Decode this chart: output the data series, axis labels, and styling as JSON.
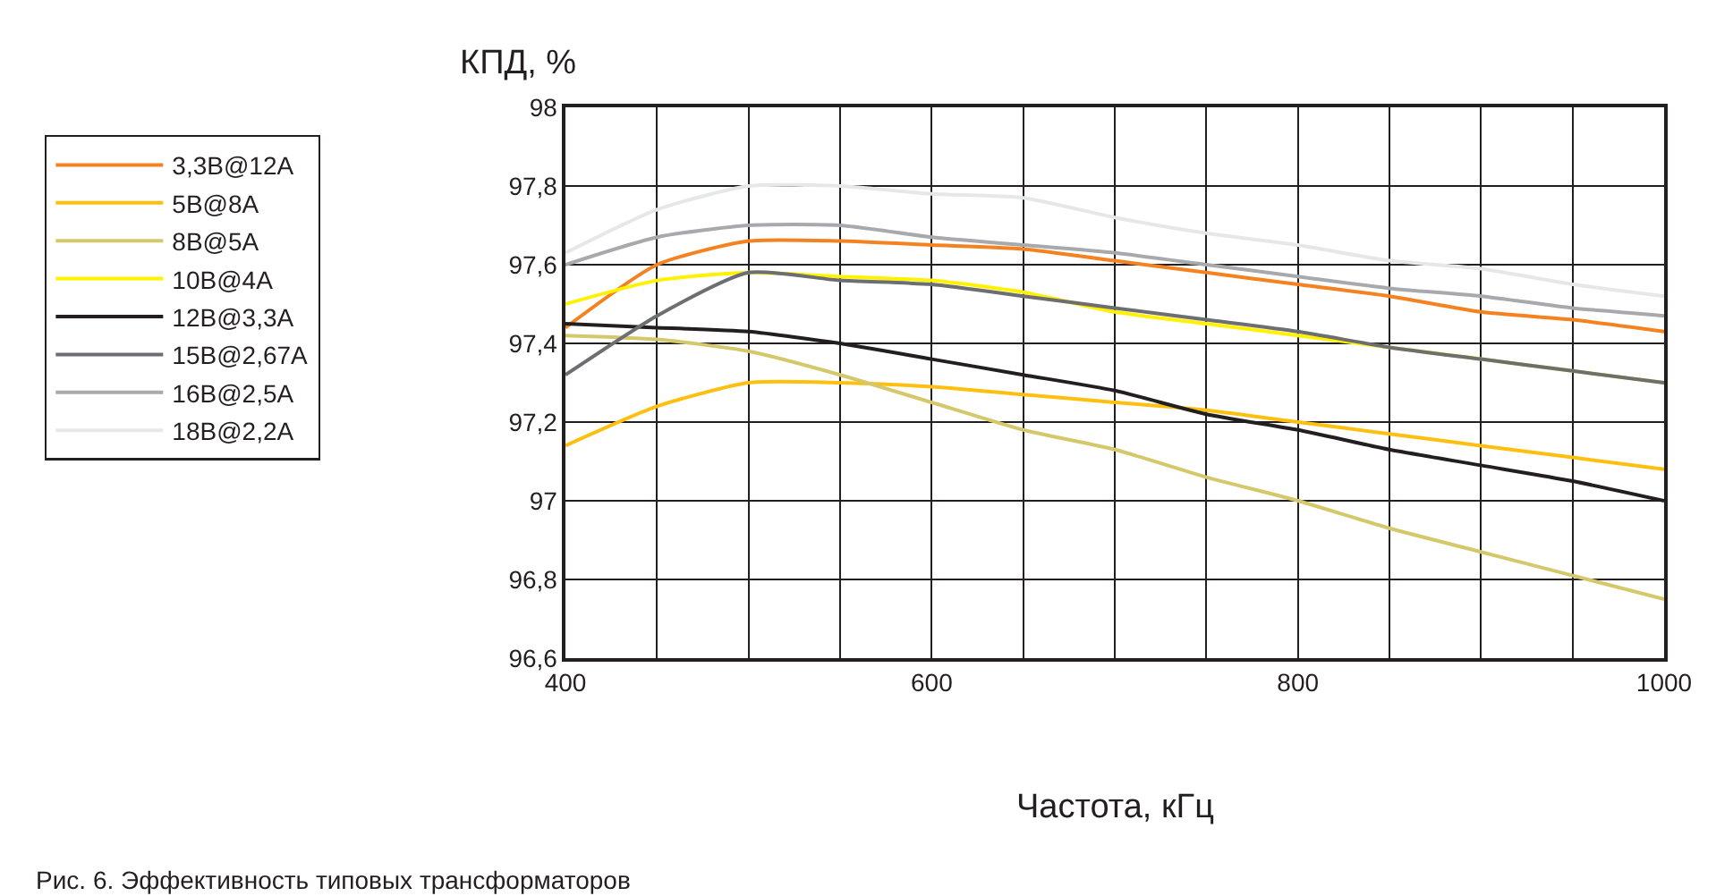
{
  "chart_data": {
    "type": "line",
    "xlabel": "Частота, кГц",
    "ylabel": "КПД, %",
    "annotations": [
      "Рис. 6. Эффективность типовых трансформаторов"
    ],
    "x": [
      400,
      450,
      500,
      550,
      600,
      650,
      700,
      750,
      800,
      850,
      900,
      950,
      1000
    ],
    "xlim": [
      400,
      1000
    ],
    "xticks": [
      400,
      {
        "value": 450,
        "label": null
      },
      {
        "value": 500,
        "label": null
      },
      {
        "value": 550,
        "label": null
      },
      600,
      {
        "value": 650,
        "label": null
      },
      {
        "value": 700,
        "label": null
      },
      {
        "value": 750,
        "label": null
      },
      800,
      {
        "value": 850,
        "label": null
      },
      {
        "value": 900,
        "label": null
      },
      {
        "value": 950,
        "label": null
      },
      1000
    ],
    "ylim": [
      96.6,
      98
    ],
    "yticks": [
      {
        "value": 96.6,
        "label": "96,6"
      },
      {
        "value": 96.8,
        "label": "96,8"
      },
      97,
      {
        "value": 97.2,
        "label": "97,2"
      },
      {
        "value": 97.4,
        "label": "97,4"
      },
      {
        "value": 97.6,
        "label": "97,6"
      },
      {
        "value": 97.8,
        "label": "97,8"
      },
      98
    ],
    "grid": true,
    "legend": "left",
    "line_style": "solid",
    "marker": "none",
    "series": [
      {
        "name": "3,3B@12A",
        "color": "#f58220",
        "values": [
          97.44,
          97.6,
          97.66,
          97.66,
          97.65,
          97.64,
          97.61,
          97.58,
          97.55,
          97.52,
          97.48,
          97.46,
          97.43
        ]
      },
      {
        "name": "5B@8A",
        "color": "#fdc010",
        "values": [
          97.14,
          97.24,
          97.3,
          97.3,
          97.29,
          97.27,
          97.25,
          97.23,
          97.2,
          97.17,
          97.14,
          97.11,
          97.08
        ]
      },
      {
        "name": "8B@5A",
        "color": "#d4c86a",
        "values": [
          97.42,
          97.41,
          97.38,
          97.32,
          97.25,
          97.18,
          97.13,
          97.06,
          97.0,
          96.93,
          96.87,
          96.81,
          96.75
        ]
      },
      {
        "name": "10B@4A",
        "color": "#fff200",
        "values": [
          97.5,
          97.56,
          97.58,
          97.57,
          97.56,
          97.53,
          97.48,
          97.45,
          97.42,
          97.39,
          97.36,
          97.33,
          97.3
        ]
      },
      {
        "name": "12B@3,3A",
        "color": "#231f20",
        "values": [
          97.45,
          97.44,
          97.43,
          97.4,
          97.36,
          97.32,
          97.28,
          97.22,
          97.18,
          97.13,
          97.09,
          97.05,
          97.0
        ]
      },
      {
        "name": "15B@2,67A",
        "color": "#6d6e71",
        "values": [
          97.32,
          97.47,
          97.58,
          97.56,
          97.55,
          97.52,
          97.49,
          97.46,
          97.43,
          97.39,
          97.36,
          97.33,
          97.3
        ]
      },
      {
        "name": "16B@2,5A",
        "color": "#a7a9ac",
        "values": [
          97.6,
          97.67,
          97.7,
          97.7,
          97.67,
          97.65,
          97.63,
          97.6,
          97.57,
          97.54,
          97.52,
          97.49,
          97.47
        ]
      },
      {
        "name": "18B@2,2A",
        "color": "#e6e7e8",
        "values": [
          97.63,
          97.74,
          97.8,
          97.8,
          97.78,
          97.77,
          97.72,
          97.68,
          97.65,
          97.61,
          97.59,
          97.55,
          97.52
        ]
      }
    ]
  }
}
